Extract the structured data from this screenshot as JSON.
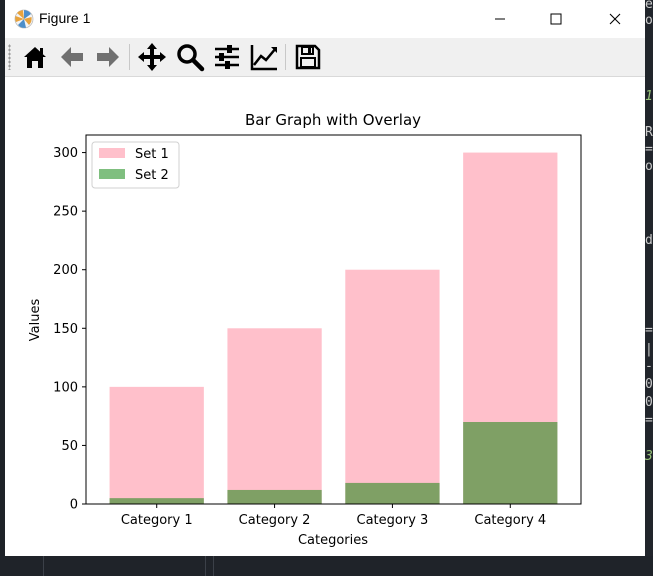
{
  "window": {
    "title": "Figure 1",
    "icon": "matplotlib-icon",
    "controls": {
      "minimize": "minimize-icon",
      "maximize": "maximize-icon",
      "close": "close-icon"
    }
  },
  "toolbar": {
    "buttons": [
      {
        "name": "home-button",
        "icon": "home-icon"
      },
      {
        "name": "back-button",
        "icon": "arrow-left-icon"
      },
      {
        "name": "forward-button",
        "icon": "arrow-right-icon"
      },
      {
        "name": "pan-button",
        "icon": "move-icon"
      },
      {
        "name": "zoom-button",
        "icon": "magnifier-icon"
      },
      {
        "name": "configure-subplots-button",
        "icon": "sliders-icon"
      },
      {
        "name": "edit-axis-button",
        "icon": "line-chart-icon"
      },
      {
        "name": "save-button",
        "icon": "floppy-disk-icon"
      }
    ]
  },
  "chart_data": {
    "type": "bar",
    "title": "Bar Graph with Overlay",
    "xlabel": "Categories",
    "ylabel": "Values",
    "categories": [
      "Category 1",
      "Category 2",
      "Category 3",
      "Category 4"
    ],
    "series": [
      {
        "name": "Set 1",
        "values": [
          100,
          150,
          200,
          300
        ],
        "color": "#ffc0cb"
      },
      {
        "name": "Set 2",
        "values": [
          5,
          12,
          18,
          70
        ],
        "color": "#008000",
        "alpha": 0.5
      }
    ],
    "ylim": [
      0,
      315
    ],
    "yticks": [
      "0",
      "50",
      "100",
      "150",
      "200",
      "250",
      "300"
    ],
    "ytick_values": [
      0,
      50,
      100,
      150,
      200,
      250,
      300
    ],
    "legend_position": "upper-left",
    "grid": false
  }
}
